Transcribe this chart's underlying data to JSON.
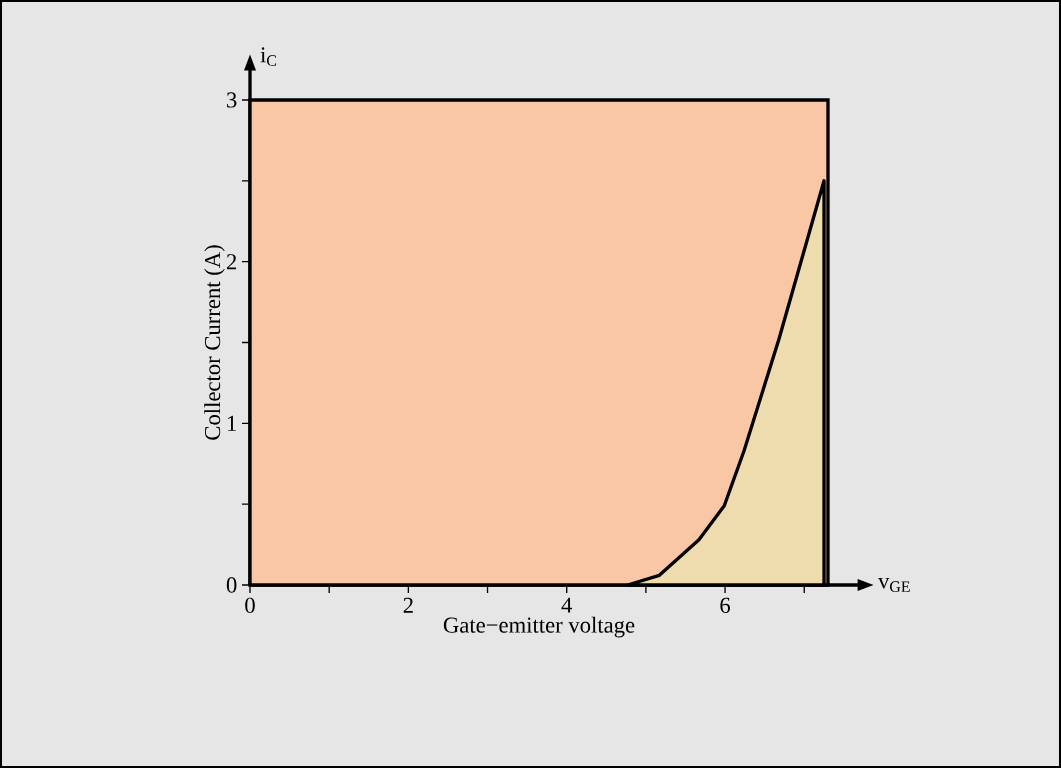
{
  "chart_data": {
    "type": "area",
    "xlabel": "Gate−emitter voltage",
    "ylabel": "Collector Current (A)",
    "annotations": [
      "i$_{C}$",
      "v$_{GE}$"
    ],
    "x": [
      4.77,
      5.17,
      5.67,
      5.99,
      6.24,
      6.68,
      7.25
    ],
    "series": [
      {
        "color": "#efdcae",
        "values": [
          0,
          0.06,
          0.28,
          0.49,
          0.83,
          1.52,
          2.5
        ]
      }
    ],
    "xlim": [
      0,
      7.3
    ],
    "ylim": [
      0,
      3
    ],
    "xticks": [
      0,
      {
        "value": 1,
        "label": null
      },
      2,
      {
        "value": 3,
        "label": null
      },
      4,
      {
        "value": 5,
        "label": null
      },
      6,
      {
        "value": 7,
        "label": null
      }
    ],
    "yticks": [
      0,
      {
        "value": 0.5,
        "label": null
      },
      1,
      {
        "value": 1.5,
        "label": null
      },
      2,
      {
        "value": 2.5,
        "label": null
      },
      3
    ],
    "bands": [
      {
        "axis": "x",
        "from": 0,
        "to": 7.3,
        "color": "#f9c6a6"
      }
    ]
  }
}
